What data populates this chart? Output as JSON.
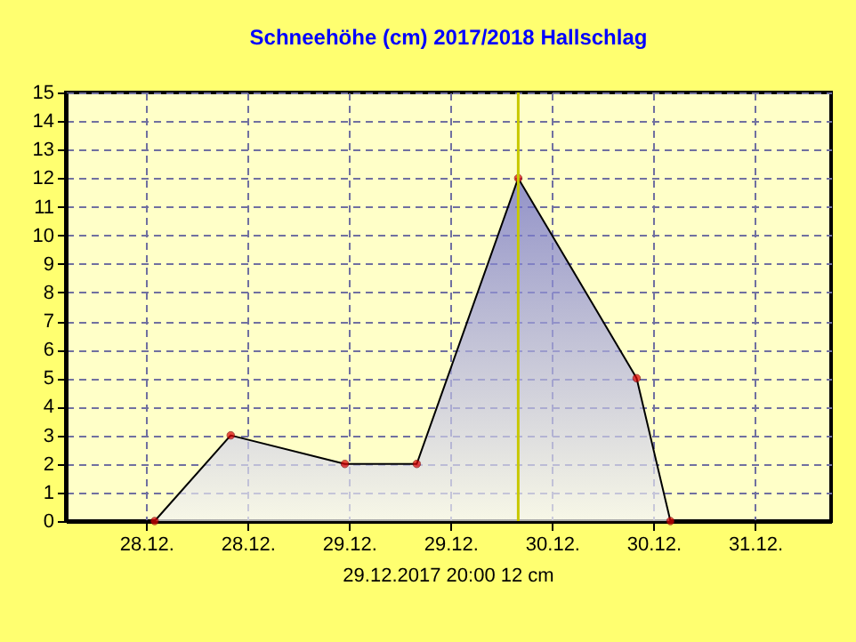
{
  "chart_data": {
    "type": "area",
    "title": "Schneehöhe (cm)  2017/2018      Hallschlag",
    "x": [
      "2017-12-28T01:00",
      "2017-12-28T10:00",
      "2017-12-28T23:30",
      "2017-12-29T08:00",
      "2017-12-29T20:00",
      "2017-12-30T10:00",
      "2017-12-30T14:00"
    ],
    "series": [
      {
        "color": "#6464c8",
        "values": [
          0,
          3,
          2,
          2,
          12,
          5,
          0
        ]
      }
    ],
    "xlim": [
      "2017-12-27T14:30",
      "2017-12-31T09:00"
    ],
    "xticks": [
      {
        "value": "2017-12-28T00:00",
        "label": "28.12."
      },
      {
        "value": "2017-12-28T12:00",
        "label": "28.12."
      },
      {
        "value": "2017-12-29T00:00",
        "label": "29.12."
      },
      {
        "value": "2017-12-29T12:00",
        "label": "29.12."
      },
      {
        "value": "2017-12-30T00:00",
        "label": "30.12."
      },
      {
        "value": "2017-12-30T12:00",
        "label": "30.12."
      },
      {
        "value": "2017-12-31T00:00",
        "label": "31.12."
      }
    ],
    "ylim": [
      0,
      15
    ],
    "yticks": [
      0,
      1,
      2,
      3,
      4,
      5,
      6,
      7,
      8,
      9,
      10,
      11,
      12,
      13,
      14,
      15
    ],
    "ref_lines": [
      {
        "axis": "x",
        "value": "2017-12-29T20:00",
        "label": "29.12.2017  20:00   12 cm",
        "color": "#c8c800"
      }
    ],
    "grid": true,
    "marker": "circle"
  }
}
